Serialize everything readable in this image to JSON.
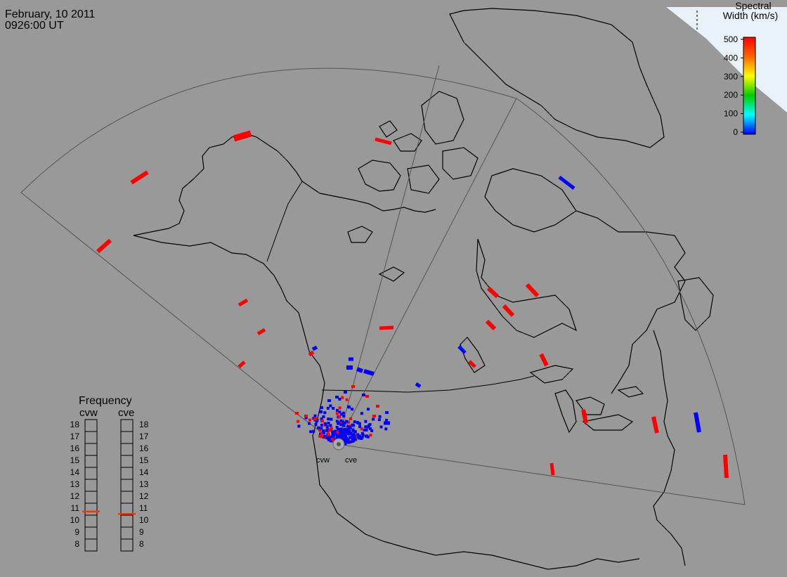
{
  "header": {
    "date": "February, 10 2011",
    "time": "0926:00 UT"
  },
  "colorbar": {
    "title_line1": "Spectral",
    "title_line2": "Width (km/s)",
    "ticks": [
      "500",
      "400",
      "300",
      "200",
      "100",
      "0"
    ],
    "colors": [
      "#ff0000",
      "#ff8800",
      "#ffff00",
      "#00dd00",
      "#00ffff",
      "#0000ff"
    ]
  },
  "radars": {
    "west": "cvw",
    "east": "cve"
  },
  "frequency_panel": {
    "title": "Frequency",
    "left_label": "cvw",
    "right_label": "cve",
    "scale": [
      "18",
      "17",
      "16",
      "15",
      "14",
      "13",
      "12",
      "11",
      "10",
      "9",
      "8"
    ],
    "cvw_value": 10.8,
    "cve_value": 10.6,
    "marker_color": "#ff3300"
  },
  "colors": {
    "background": "#999999",
    "fov_line": "#555555",
    "coast": "#000000",
    "high_width": "#ff0000",
    "low_width": "#0000ff"
  }
}
